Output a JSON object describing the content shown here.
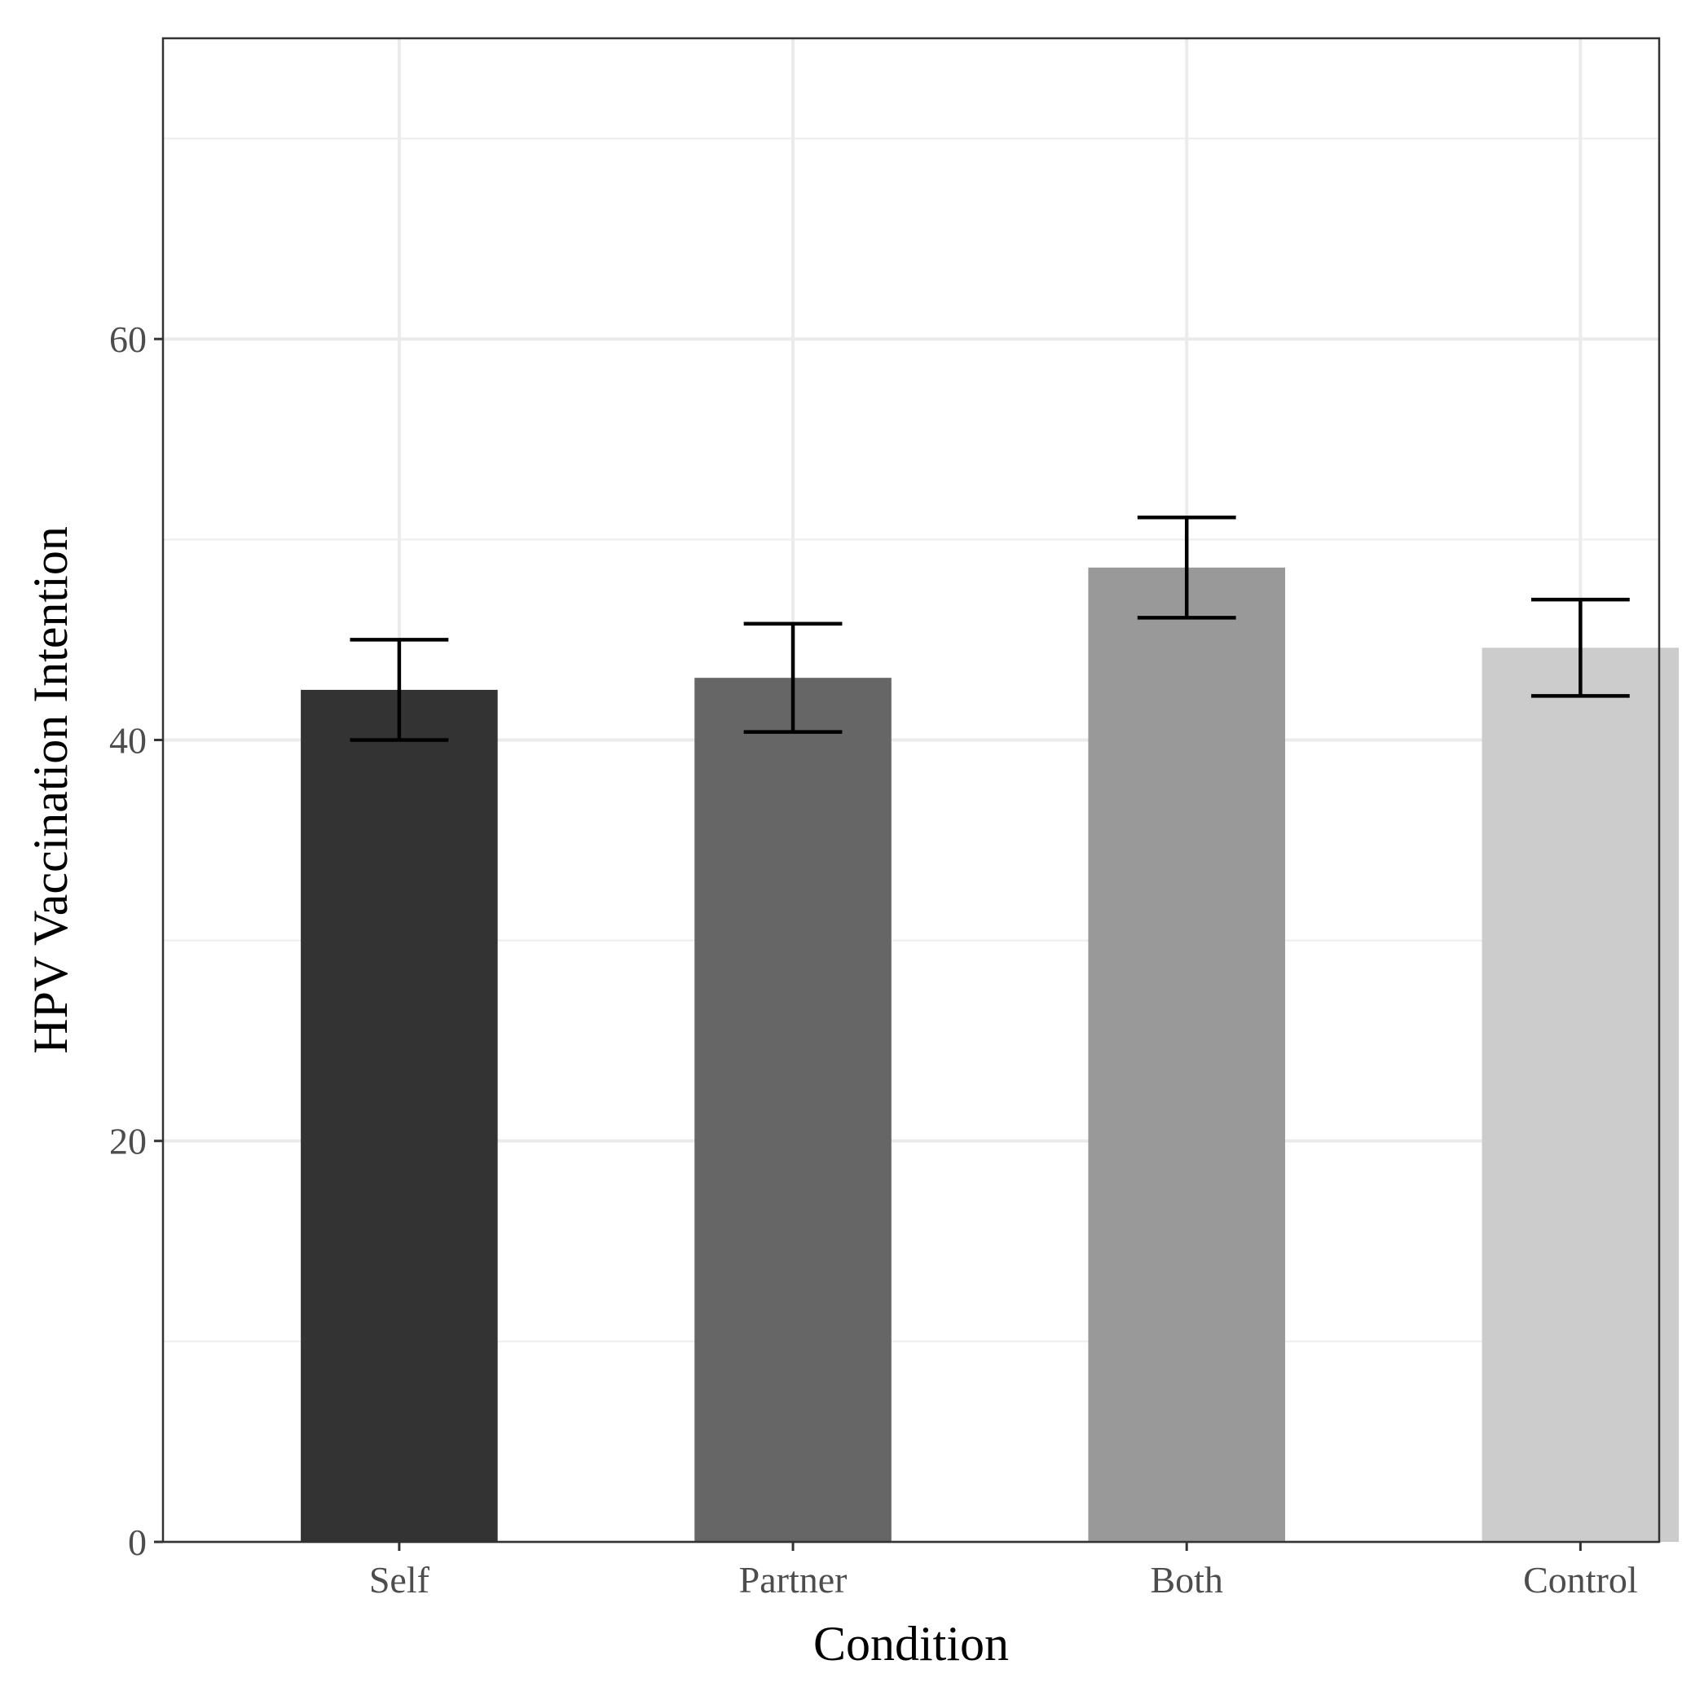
{
  "chart_data": {
    "type": "bar",
    "title": "",
    "xlabel": "Condition",
    "ylabel": "HPV Vaccination Intention",
    "categories": [
      "Self",
      "Partner",
      "Both",
      "Control"
    ],
    "values": [
      42.5,
      43.1,
      48.6,
      44.6
    ],
    "error_bars": [
      {
        "low": 40.0,
        "high": 45.0
      },
      {
        "low": 40.4,
        "high": 45.8
      },
      {
        "low": 46.1,
        "high": 51.1
      },
      {
        "low": 42.2,
        "high": 47.0
      }
    ],
    "bar_colors": [
      "#333333",
      "#666666",
      "#999999",
      "#cccccc"
    ],
    "ylim": [
      0,
      75
    ],
    "yticks": [
      0,
      20,
      40,
      60
    ],
    "ytick_labels": [
      "0",
      "20",
      "40",
      "60"
    ],
    "grid": true,
    "legend": "none"
  }
}
